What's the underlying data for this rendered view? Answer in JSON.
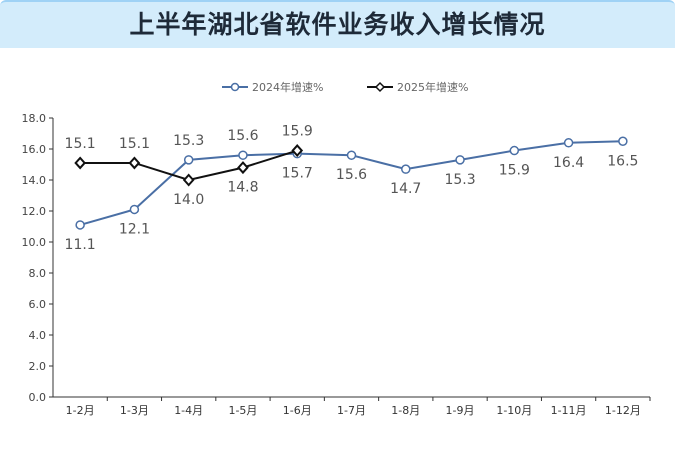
{
  "chart_data": {
    "type": "line",
    "title": "上半年湖北省软件业务收入增长情况",
    "categories": [
      "1-2月",
      "1-3月",
      "1-4月",
      "1-5月",
      "1-6月",
      "1-7月",
      "1-8月",
      "1-9月",
      "1-10月",
      "1-11月",
      "1-12月"
    ],
    "series": [
      {
        "name": "2024年增速%",
        "color": "#4a6fa5",
        "marker": "hollow-circle",
        "values": [
          11.1,
          12.1,
          15.3,
          15.6,
          15.7,
          15.6,
          14.7,
          15.3,
          15.9,
          16.4,
          16.5
        ]
      },
      {
        "name": "2025年增速%",
        "color": "#111111",
        "marker": "diamond",
        "values": [
          15.1,
          15.1,
          14.0,
          14.8,
          15.9,
          null,
          null,
          null,
          null,
          null,
          null
        ]
      }
    ],
    "yticks": [
      "0.0",
      "2.0",
      "4.0",
      "6.0",
      "8.0",
      "10.0",
      "12.0",
      "14.0",
      "16.0",
      "18.0"
    ],
    "ylim": [
      0,
      18
    ],
    "grid": false,
    "legend": "top"
  }
}
